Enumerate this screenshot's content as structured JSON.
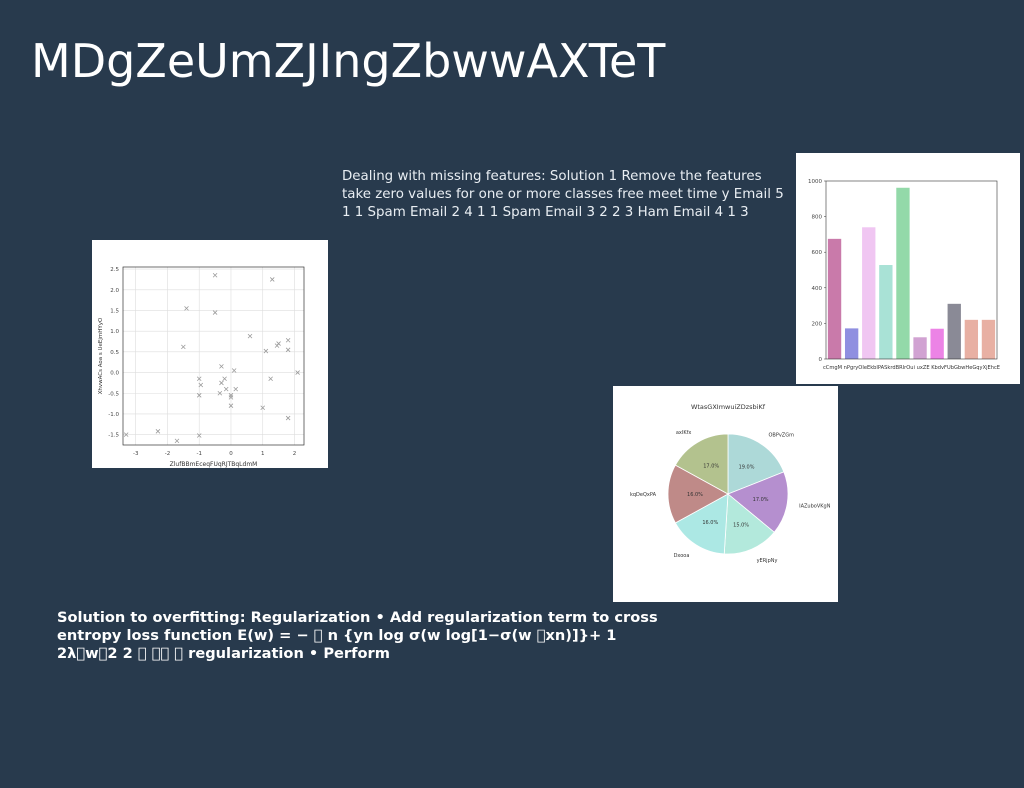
{
  "slide": {
    "title": "MDgZeUmZJIngZbwwAXTeT",
    "paragraph": "Dealing with missing features: Solution 1 Remove the features take zero values for one or more classes free meet time y Email 5 1 1 Spam Email 2 4 1 1 Spam Email 3 2 2 3 Ham Email 4 1 3",
    "overfitting_text": "Solution to overfitting: Regularization • Add regularization term to cross entropy loss function E(w) = − \u0000 n {yn log σ(w log[1−σ(w \u0000xn)]}+ 1 2λ\u0000w\u00002 2 \u0000 \u0000\u0000 \u0000 regularization • Perform"
  },
  "chart_data": [
    {
      "type": "scatter",
      "title": "",
      "xlabel": "ZlufBBmEceqFUqRJTBqLdmM",
      "ylabel": "XhvwACs Aoa s UeEjmHYyO",
      "xlim": [
        -3.4,
        2.3
      ],
      "ylim": [
        -1.75,
        2.55
      ],
      "xticks": [
        -3,
        -2,
        -1,
        0,
        1,
        2
      ],
      "yticks": [
        -1.5,
        -1.0,
        -0.5,
        0.0,
        0.5,
        1.0,
        1.5,
        2.0,
        2.5
      ],
      "grid": true,
      "marker": "x",
      "color": "#9a9a9a",
      "x": [
        -3.3,
        -2.3,
        -1.7,
        -1.0,
        -1.5,
        -1.4,
        -0.5,
        -0.5,
        -1.0,
        -1.0,
        -0.95,
        -0.35,
        -0.3,
        -0.2,
        -0.15,
        -0.3,
        0.0,
        0.1,
        0.15,
        0.0,
        0.0,
        0.6,
        1.0,
        1.1,
        1.25,
        1.3,
        1.45,
        1.5,
        1.8,
        1.8,
        1.8,
        2.1
      ],
      "y": [
        -1.5,
        -1.42,
        -1.65,
        -1.52,
        0.62,
        1.55,
        1.45,
        2.35,
        -0.55,
        -0.15,
        -0.3,
        -0.5,
        -0.25,
        -0.15,
        -0.4,
        0.15,
        -0.6,
        0.05,
        -0.4,
        -0.8,
        -0.55,
        0.88,
        -0.85,
        0.52,
        -0.15,
        2.25,
        0.65,
        0.7,
        0.55,
        0.78,
        -1.1,
        0.0
      ]
    },
    {
      "type": "bar",
      "title": "",
      "categories": [
        "cCmgM",
        "nPgry",
        "OIeE",
        "kbIPA",
        "SkrdBR",
        "IrOui",
        "uxZE",
        "KdvFUb",
        "bwHeG",
        "qyXjEhcE"
      ],
      "tick_labels_shown": "cCmgM nPgryOIeEkbIPASkrdBRIrOui uxZE KbdvFUbGbwHeGqyXjEhcE",
      "values": [
        675,
        172,
        740,
        528,
        962,
        122,
        170,
        310,
        220,
        220
      ],
      "ylim": [
        0,
        1000
      ],
      "yticks": [
        0,
        200,
        400,
        600,
        800,
        1000
      ],
      "colors": [
        "#c97aaa",
        "#8f8fe0",
        "#f0c6f2",
        "#a9e2d6",
        "#93d9a9",
        "#d1a2d2",
        "#ec83e6",
        "#8a8a96",
        "#e8b0a3",
        "#e8b0a3"
      ]
    },
    {
      "type": "pie",
      "title": "WtasGXImwuiZDzsbiKf",
      "labels": [
        "OBPvZGm",
        "IAZuboVKgN",
        "yERjpNy",
        "Dxooa",
        "kqDeQxPA",
        "axIKfx"
      ],
      "values": [
        19.0,
        17.0,
        15.0,
        16.0,
        16.0,
        17.0
      ],
      "pct_labels": [
        "19.0%",
        "17.0%",
        "15.0%",
        "16.0%",
        "16.0%",
        "17.0%"
      ],
      "colors": [
        "#add9d8",
        "#b58fcf",
        "#b3e9dc",
        "#ace8e4",
        "#bf8a88",
        "#b3c28e"
      ]
    }
  ]
}
